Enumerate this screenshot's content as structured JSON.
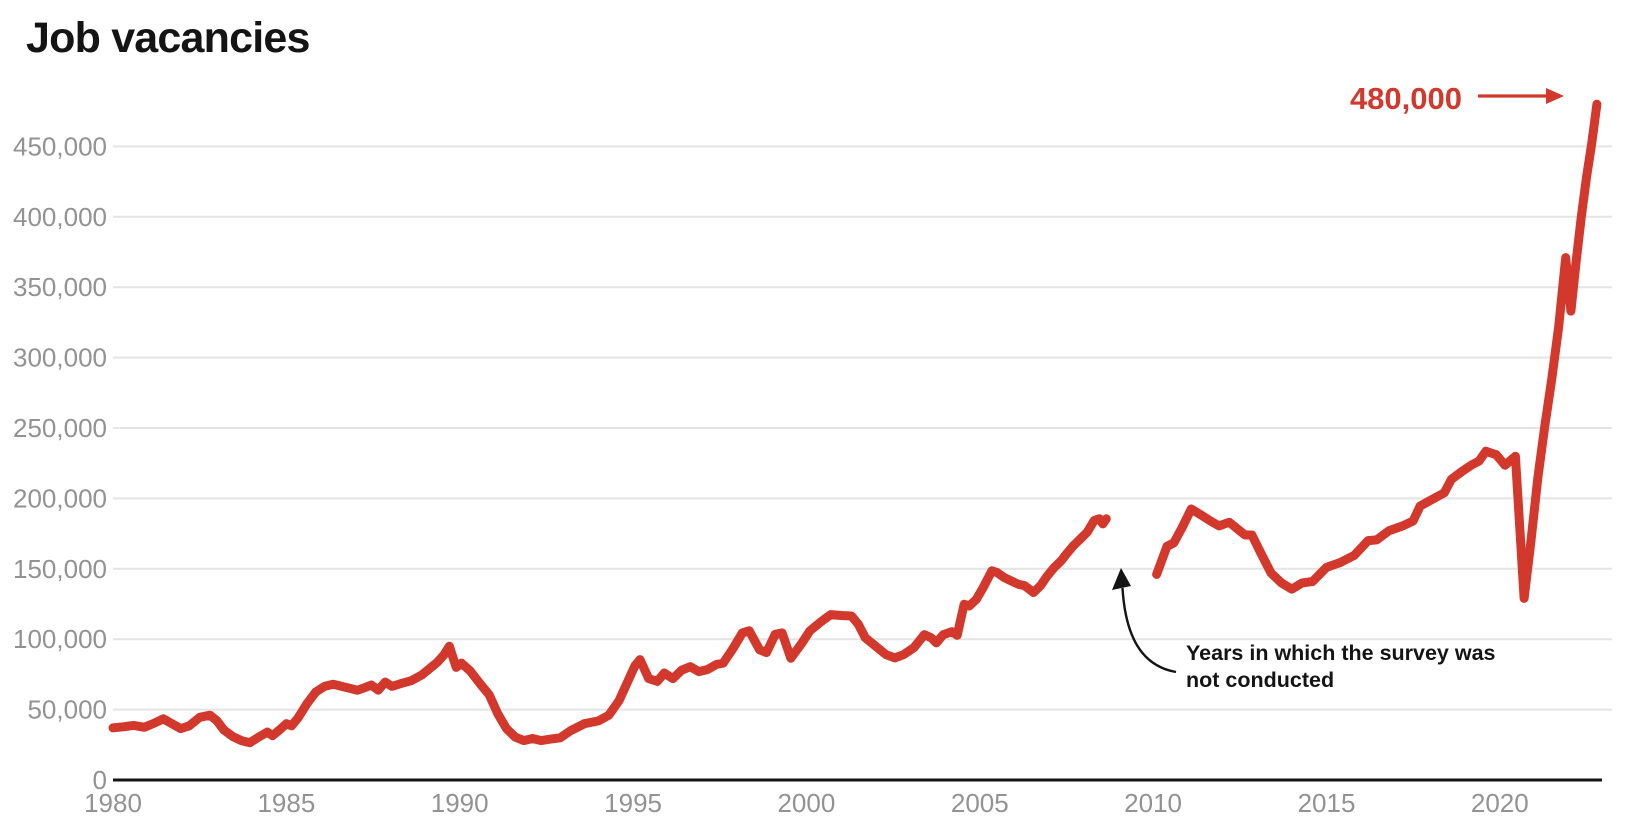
{
  "chart_data": {
    "type": "line",
    "title": "Job vacancies",
    "xlabel": "",
    "ylabel": "",
    "ylim": [
      0,
      500000
    ],
    "xlim": [
      1980,
      2023
    ],
    "grid": "horizontal",
    "legend": "none",
    "colors": {
      "line": "#d2382c",
      "annotation_red": "#d2382c",
      "text_dark": "#141414",
      "tick_gray": "#929292",
      "gridline": "#e4e4e4",
      "axis": "#141414",
      "background": "#ffffff"
    },
    "y_ticks": [
      {
        "value": 0,
        "label": "0"
      },
      {
        "value": 50000,
        "label": "50,000"
      },
      {
        "value": 100000,
        "label": "100,000"
      },
      {
        "value": 150000,
        "label": "150,000"
      },
      {
        "value": 200000,
        "label": "200,000"
      },
      {
        "value": 250000,
        "label": "250,000"
      },
      {
        "value": 300000,
        "label": "300,000"
      },
      {
        "value": 350000,
        "label": "350,000"
      },
      {
        "value": 400000,
        "label": "400,000"
      },
      {
        "value": 450000,
        "label": "450,000"
      }
    ],
    "x_ticks": [
      {
        "value": 1980,
        "label": "1980"
      },
      {
        "value": 1985,
        "label": "1985"
      },
      {
        "value": 1990,
        "label": "1990"
      },
      {
        "value": 1995,
        "label": "1995"
      },
      {
        "value": 2000,
        "label": "2000"
      },
      {
        "value": 2005,
        "label": "2005"
      },
      {
        "value": 2010,
        "label": "2010"
      },
      {
        "value": 2015,
        "label": "2015"
      },
      {
        "value": 2020,
        "label": "2020"
      }
    ],
    "series": [
      {
        "name": "1980-2008 (before survey gap)",
        "points": [
          [
            1980.0,
            37000
          ],
          [
            1980.3,
            37800
          ],
          [
            1980.6,
            38800
          ],
          [
            1980.9,
            37400
          ],
          [
            1981.2,
            40500
          ],
          [
            1981.45,
            43500
          ],
          [
            1981.7,
            40000
          ],
          [
            1981.95,
            36500
          ],
          [
            1982.2,
            38500
          ],
          [
            1982.5,
            44500
          ],
          [
            1982.8,
            46000
          ],
          [
            1983.0,
            42000
          ],
          [
            1983.2,
            35500
          ],
          [
            1983.45,
            31000
          ],
          [
            1983.7,
            28000
          ],
          [
            1983.95,
            26500
          ],
          [
            1984.2,
            30500
          ],
          [
            1984.45,
            34000
          ],
          [
            1984.6,
            31500
          ],
          [
            1984.8,
            35500
          ],
          [
            1985.0,
            40000
          ],
          [
            1985.15,
            38500
          ],
          [
            1985.35,
            44500
          ],
          [
            1985.6,
            54500
          ],
          [
            1985.85,
            62500
          ],
          [
            1986.1,
            66500
          ],
          [
            1986.35,
            68000
          ],
          [
            1986.6,
            66500
          ],
          [
            1986.85,
            65000
          ],
          [
            1987.05,
            63800
          ],
          [
            1987.25,
            65500
          ],
          [
            1987.45,
            67500
          ],
          [
            1987.65,
            63800
          ],
          [
            1987.85,
            69500
          ],
          [
            1988.05,
            66500
          ],
          [
            1988.3,
            68500
          ],
          [
            1988.6,
            70500
          ],
          [
            1988.9,
            74500
          ],
          [
            1989.1,
            78500
          ],
          [
            1989.35,
            83500
          ],
          [
            1989.55,
            89000
          ],
          [
            1989.7,
            95000
          ],
          [
            1989.9,
            80000
          ],
          [
            1990.05,
            83000
          ],
          [
            1990.3,
            77500
          ],
          [
            1990.6,
            68000
          ],
          [
            1990.85,
            60500
          ],
          [
            1991.1,
            47000
          ],
          [
            1991.35,
            36500
          ],
          [
            1991.6,
            30500
          ],
          [
            1991.85,
            28000
          ],
          [
            1992.1,
            29500
          ],
          [
            1992.35,
            28000
          ],
          [
            1992.6,
            29000
          ],
          [
            1992.9,
            30000
          ],
          [
            1993.2,
            35000
          ],
          [
            1993.6,
            40000
          ],
          [
            1994.0,
            42000
          ],
          [
            1994.3,
            46000
          ],
          [
            1994.6,
            56500
          ],
          [
            1994.85,
            70000
          ],
          [
            1995.05,
            81000
          ],
          [
            1995.2,
            85500
          ],
          [
            1995.45,
            72000
          ],
          [
            1995.7,
            70000
          ],
          [
            1995.9,
            76000
          ],
          [
            1996.15,
            72000
          ],
          [
            1996.4,
            78000
          ],
          [
            1996.65,
            80500
          ],
          [
            1996.9,
            77000
          ],
          [
            1997.15,
            78500
          ],
          [
            1997.4,
            82000
          ],
          [
            1997.6,
            83000
          ],
          [
            1997.9,
            94000
          ],
          [
            1998.15,
            104500
          ],
          [
            1998.35,
            106000
          ],
          [
            1998.65,
            92500
          ],
          [
            1998.85,
            90500
          ],
          [
            1999.1,
            103500
          ],
          [
            1999.3,
            104500
          ],
          [
            1999.55,
            86500
          ],
          [
            1999.85,
            96500
          ],
          [
            2000.1,
            106000
          ],
          [
            2000.4,
            112000
          ],
          [
            2000.7,
            117500
          ],
          [
            2001.0,
            116800
          ],
          [
            2001.3,
            116500
          ],
          [
            2001.5,
            110500
          ],
          [
            2001.7,
            101000
          ],
          [
            2002.0,
            95000
          ],
          [
            2002.3,
            89000
          ],
          [
            2002.55,
            86700
          ],
          [
            2002.8,
            89000
          ],
          [
            2003.1,
            94000
          ],
          [
            2003.25,
            98600
          ],
          [
            2003.4,
            103300
          ],
          [
            2003.6,
            101000
          ],
          [
            2003.75,
            97400
          ],
          [
            2003.95,
            103300
          ],
          [
            2004.2,
            105300
          ],
          [
            2004.35,
            102800
          ],
          [
            2004.55,
            124800
          ],
          [
            2004.7,
            123600
          ],
          [
            2004.9,
            128300
          ],
          [
            2005.1,
            136700
          ],
          [
            2005.35,
            148600
          ],
          [
            2005.5,
            147400
          ],
          [
            2005.7,
            143900
          ],
          [
            2005.9,
            141500
          ],
          [
            2006.1,
            139100
          ],
          [
            2006.3,
            137900
          ],
          [
            2006.55,
            133200
          ],
          [
            2006.75,
            137900
          ],
          [
            2006.95,
            145100
          ],
          [
            2007.15,
            151000
          ],
          [
            2007.35,
            155700
          ],
          [
            2007.5,
            160500
          ],
          [
            2007.7,
            166400
          ],
          [
            2007.9,
            171200
          ],
          [
            2008.1,
            176000
          ],
          [
            2008.3,
            184300
          ],
          [
            2008.45,
            185500
          ],
          [
            2008.55,
            181900
          ],
          [
            2008.65,
            185500
          ]
        ]
      },
      {
        "name": "2010-2022 (after survey gap)",
        "points": [
          [
            2010.1,
            146000
          ],
          [
            2010.4,
            166000
          ],
          [
            2010.6,
            168500
          ],
          [
            2010.85,
            180000
          ],
          [
            2011.1,
            192500
          ],
          [
            2011.4,
            188000
          ],
          [
            2011.65,
            184000
          ],
          [
            2011.9,
            180500
          ],
          [
            2012.2,
            183000
          ],
          [
            2012.45,
            178000
          ],
          [
            2012.65,
            174000
          ],
          [
            2012.85,
            174000
          ],
          [
            2013.1,
            161500
          ],
          [
            2013.4,
            147000
          ],
          [
            2013.7,
            140000
          ],
          [
            2014.0,
            135500
          ],
          [
            2014.3,
            140000
          ],
          [
            2014.6,
            141000
          ],
          [
            2015.0,
            151000
          ],
          [
            2015.4,
            154500
          ],
          [
            2015.8,
            159500
          ],
          [
            2016.2,
            170000
          ],
          [
            2016.45,
            170500
          ],
          [
            2016.8,
            177000
          ],
          [
            2017.2,
            180500
          ],
          [
            2017.5,
            184000
          ],
          [
            2017.7,
            194500
          ],
          [
            2018.1,
            200000
          ],
          [
            2018.4,
            204000
          ],
          [
            2018.6,
            213500
          ],
          [
            2018.9,
            219000
          ],
          [
            2019.2,
            224000
          ],
          [
            2019.4,
            226500
          ],
          [
            2019.6,
            233500
          ],
          [
            2019.9,
            231000
          ],
          [
            2020.15,
            223500
          ],
          [
            2020.45,
            230000
          ],
          [
            2020.7,
            129000
          ],
          [
            2020.9,
            170000
          ],
          [
            2021.1,
            215000
          ],
          [
            2021.3,
            252000
          ],
          [
            2021.5,
            285000
          ],
          [
            2021.7,
            322000
          ],
          [
            2021.9,
            371000
          ],
          [
            2022.05,
            333000
          ],
          [
            2022.2,
            368000
          ],
          [
            2022.35,
            400000
          ],
          [
            2022.5,
            428000
          ],
          [
            2022.65,
            452000
          ],
          [
            2022.8,
            480000
          ]
        ]
      }
    ],
    "annotations": {
      "final_value_label": "480,000",
      "final_value": 480000,
      "gap_note_lines": [
        "Years in which the survey was",
        "not conducted"
      ]
    }
  }
}
